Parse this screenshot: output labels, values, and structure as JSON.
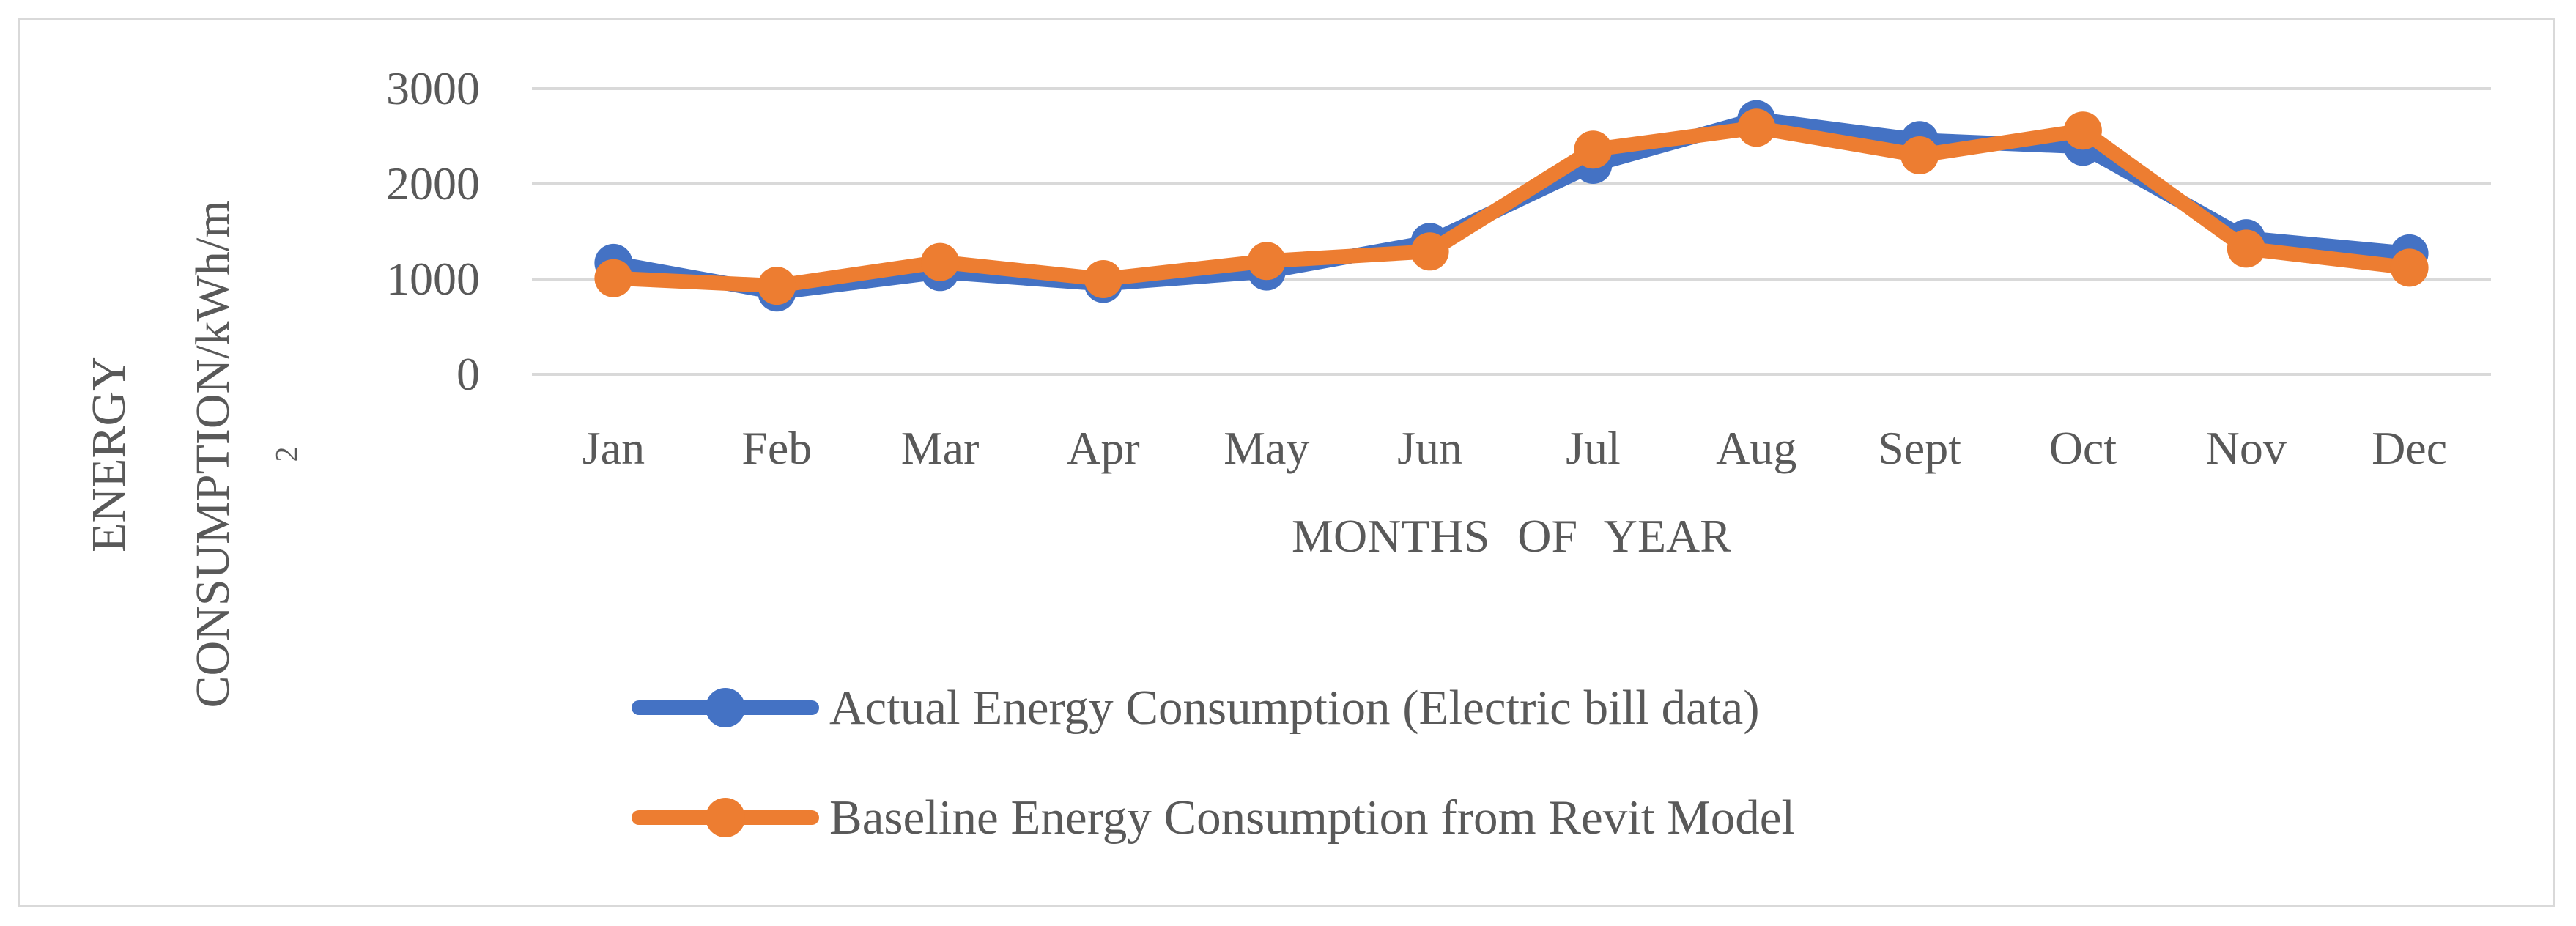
{
  "figure": {
    "background": "#ffffff",
    "border_color": "#d9d9d9"
  },
  "chart_data": {
    "type": "line",
    "title": "",
    "categories": [
      "Jan",
      "Feb",
      "Mar",
      "Apr",
      "May",
      "Jun",
      "Jul",
      "Aug",
      "Sept",
      "Oct",
      "Nov",
      "Dec"
    ],
    "series": [
      {
        "name": "Actual Energy Consumption (Electric bill data)",
        "color": "#4472C4",
        "values": [
          1170,
          860,
          1075,
          950,
          1080,
          1390,
          2200,
          2680,
          2460,
          2390,
          1430,
          1270
        ]
      },
      {
        "name": "Baseline Energy Consumption from Revit Model",
        "color": "#ED7D31",
        "values": [
          1010,
          930,
          1180,
          1000,
          1190,
          1290,
          2360,
          2590,
          2300,
          2560,
          1320,
          1120
        ]
      }
    ],
    "xlabel": "MONTHS OF YEAR",
    "ylabel": "ENERGY CONSUMPTION/kWh/m²",
    "ylabel_lines": [
      "ENERGY",
      "CONSUMPTION/kWh/m",
      "2"
    ],
    "yticks": [
      0,
      1000,
      2000,
      3000
    ],
    "ylim": [
      0,
      3000
    ],
    "grid": true,
    "grid_color": "#d9d9d9",
    "text_color": "#595959",
    "legend_position": "bottom-left",
    "marker": "circle"
  }
}
